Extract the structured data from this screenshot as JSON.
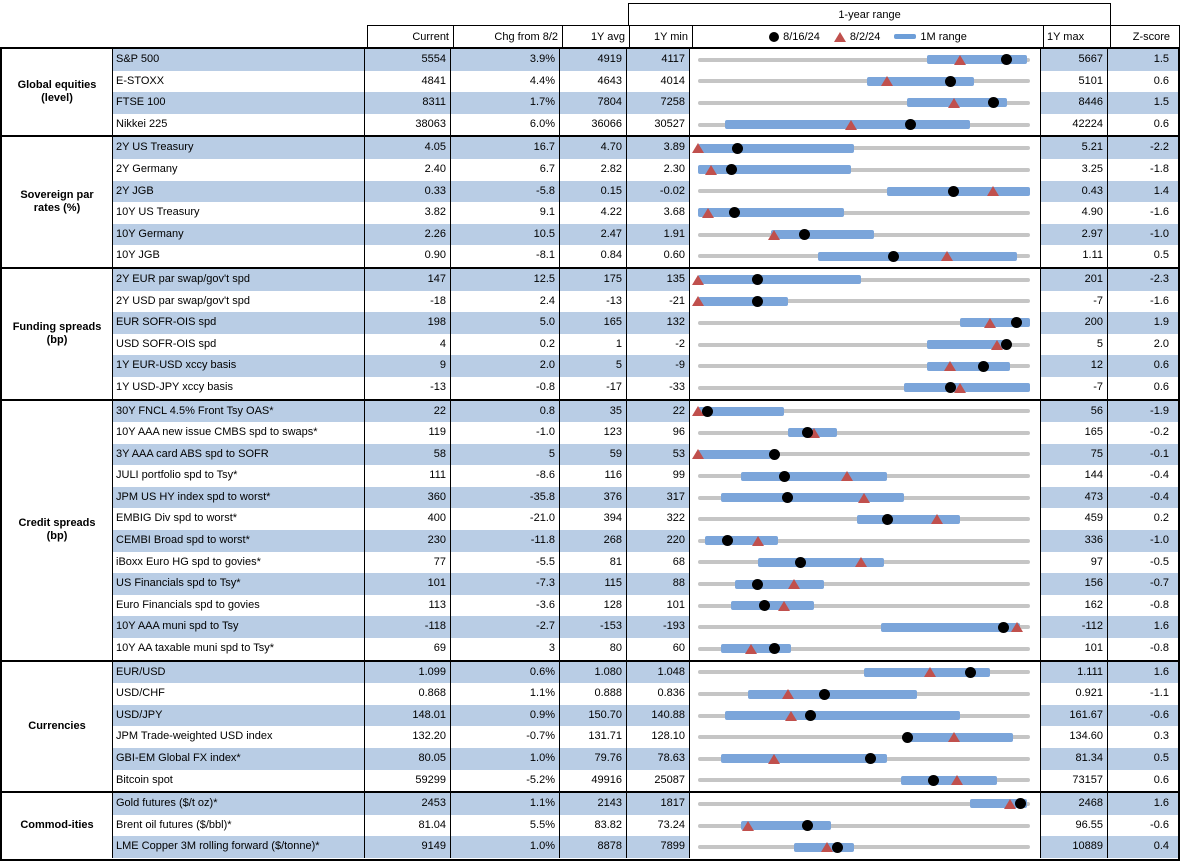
{
  "header": {
    "range_title": "1-year range",
    "columns": {
      "current": "Current",
      "chg": "Chg from 8/2",
      "avg": "1Y avg",
      "min": "1Y min",
      "max": "1Y max",
      "zscore": "Z-score"
    }
  },
  "legend": {
    "dot": "8/16/24",
    "triangle": "8/2/24",
    "bar": "1M range"
  },
  "colors": {
    "stripe": "#b9cde5",
    "bar_1m": "#7ba5da",
    "track": "#c5c5c5",
    "triangle": "#c0504d",
    "dot": "#000000"
  },
  "chart_data": {
    "type": "table",
    "title": "1-year range",
    "legend_position": "top",
    "notes": "Each row shows current value, change from 8/2, 1Y average, 1Y min/max, Z-score, and a bullet chart of the 1-year range. 'bar' = 1M range [start,end], 'tri' = 8/2/24 level, 'dot' = 8/16/24 level, all as fractions of the 1Y min-to-max track.",
    "groups": [
      {
        "label": "Global equities (level)",
        "rows": [
          {
            "name": "S&P 500",
            "current": "5554",
            "chg": "3.9%",
            "avg": "4919",
            "min": "4117",
            "max": "5667",
            "z": "1.5",
            "bar": [
              0.69,
              0.99
            ],
            "tri": 0.79,
            "dot": 0.93
          },
          {
            "name": "E-STOXX",
            "current": "4841",
            "chg": "4.4%",
            "avg": "4643",
            "min": "4014",
            "max": "5101",
            "z": "0.6",
            "bar": [
              0.51,
              0.83
            ],
            "tri": 0.57,
            "dot": 0.76
          },
          {
            "name": "FTSE 100",
            "current": "8311",
            "chg": "1.7%",
            "avg": "7804",
            "min": "7258",
            "max": "8446",
            "z": "1.5",
            "bar": [
              0.63,
              0.93
            ],
            "tri": 0.77,
            "dot": 0.89
          },
          {
            "name": "Nikkei 225",
            "current": "38063",
            "chg": "6.0%",
            "avg": "36066",
            "min": "30527",
            "max": "42224",
            "z": "0.6",
            "bar": [
              0.08,
              0.82
            ],
            "tri": 0.46,
            "dot": 0.64
          }
        ]
      },
      {
        "label": "Sovereign par rates (%)",
        "rows": [
          {
            "name": "2Y US Treasury",
            "current": "4.05",
            "chg": "16.7",
            "avg": "4.70",
            "min": "3.89",
            "max": "5.21",
            "z": "-2.2",
            "bar": [
              0.0,
              0.47
            ],
            "tri": 0.0,
            "dot": 0.12
          },
          {
            "name": "2Y Germany",
            "current": "2.40",
            "chg": "6.7",
            "avg": "2.82",
            "min": "2.30",
            "max": "3.25",
            "z": "-1.8",
            "bar": [
              0.0,
              0.46
            ],
            "tri": 0.04,
            "dot": 0.1
          },
          {
            "name": "2Y JGB",
            "current": "0.33",
            "chg": "-5.8",
            "avg": "0.15",
            "min": "-0.02",
            "max": "0.43",
            "z": "1.4",
            "bar": [
              0.57,
              1.0
            ],
            "tri": 0.89,
            "dot": 0.77
          },
          {
            "name": "10Y US Treasury",
            "current": "3.82",
            "chg": "9.1",
            "avg": "4.22",
            "min": "3.68",
            "max": "4.90",
            "z": "-1.6",
            "bar": [
              0.0,
              0.44
            ],
            "tri": 0.03,
            "dot": 0.11
          },
          {
            "name": "10Y Germany",
            "current": "2.26",
            "chg": "10.5",
            "avg": "2.47",
            "min": "1.91",
            "max": "2.97",
            "z": "-1.0",
            "bar": [
              0.22,
              0.53
            ],
            "tri": 0.23,
            "dot": 0.32
          },
          {
            "name": "10Y JGB",
            "current": "0.90",
            "chg": "-8.1",
            "avg": "0.84",
            "min": "0.60",
            "max": "1.11",
            "z": "0.5",
            "bar": [
              0.36,
              0.96
            ],
            "tri": 0.75,
            "dot": 0.59
          }
        ]
      },
      {
        "label": "Funding spreads (bp)",
        "rows": [
          {
            "name": "2Y EUR par swap/gov't spd",
            "current": "147",
            "chg": "12.5",
            "avg": "175",
            "min": "135",
            "max": "201",
            "z": "-2.3",
            "bar": [
              0.0,
              0.49
            ],
            "tri": 0.0,
            "dot": 0.18
          },
          {
            "name": "2Y USD par swap/gov't spd",
            "current": "-18",
            "chg": "2.4",
            "avg": "-13",
            "min": "-21",
            "max": "-7",
            "z": "-1.6",
            "bar": [
              0.0,
              0.27
            ],
            "tri": 0.0,
            "dot": 0.18
          },
          {
            "name": "EUR SOFR-OIS spd",
            "current": "198",
            "chg": "5.0",
            "avg": "165",
            "min": "132",
            "max": "200",
            "z": "1.9",
            "bar": [
              0.79,
              1.0
            ],
            "tri": 0.88,
            "dot": 0.96
          },
          {
            "name": "USD SOFR-OIS spd",
            "current": "4",
            "chg": "0.2",
            "avg": "1",
            "min": "-2",
            "max": "5",
            "z": "2.0",
            "bar": [
              0.69,
              0.94
            ],
            "tri": 0.9,
            "dot": 0.93
          },
          {
            "name": "1Y EUR-USD xccy basis",
            "current": "9",
            "chg": "2.0",
            "avg": "5",
            "min": "-9",
            "max": "12",
            "z": "0.6",
            "bar": [
              0.69,
              0.94
            ],
            "tri": 0.76,
            "dot": 0.86
          },
          {
            "name": "1Y USD-JPY xccy basis",
            "current": "-13",
            "chg": "-0.8",
            "avg": "-17",
            "min": "-33",
            "max": "-7",
            "z": "0.6",
            "bar": [
              0.62,
              1.0
            ],
            "tri": 0.79,
            "dot": 0.76
          }
        ]
      },
      {
        "label": "Credit spreads (bp)",
        "rows": [
          {
            "name": "30Y FNCL 4.5% Front Tsy OAS*",
            "current": "22",
            "chg": "0.8",
            "avg": "35",
            "min": "22",
            "max": "56",
            "z": "-1.9",
            "bar": [
              0.0,
              0.26
            ],
            "tri": 0.0,
            "dot": 0.03
          },
          {
            "name": "10Y AAA new issue CMBS spd to swaps*",
            "current": "119",
            "chg": "-1.0",
            "avg": "123",
            "min": "96",
            "max": "165",
            "z": "-0.2",
            "bar": [
              0.27,
              0.42
            ],
            "tri": 0.35,
            "dot": 0.33
          },
          {
            "name": "3Y AAA card ABS spd to SOFR",
            "current": "58",
            "chg": "5",
            "avg": "59",
            "min": "53",
            "max": "75",
            "z": "-0.1",
            "bar": [
              0.0,
              0.22
            ],
            "tri": 0.0,
            "dot": 0.23
          },
          {
            "name": "JULI portfolio spd to Tsy*",
            "current": "111",
            "chg": "-8.6",
            "avg": "116",
            "min": "99",
            "max": "144",
            "z": "-0.4",
            "bar": [
              0.13,
              0.57
            ],
            "tri": 0.45,
            "dot": 0.26
          },
          {
            "name": "JPM US HY index spd to worst*",
            "current": "360",
            "chg": "-35.8",
            "avg": "376",
            "min": "317",
            "max": "473",
            "z": "-0.4",
            "bar": [
              0.07,
              0.62
            ],
            "tri": 0.5,
            "dot": 0.27
          },
          {
            "name": "EMBIG Div spd to worst*",
            "current": "400",
            "chg": "-21.0",
            "avg": "394",
            "min": "322",
            "max": "459",
            "z": "0.2",
            "bar": [
              0.48,
              0.79
            ],
            "tri": 0.72,
            "dot": 0.57
          },
          {
            "name": "CEMBI Broad spd to worst*",
            "current": "230",
            "chg": "-11.8",
            "avg": "268",
            "min": "220",
            "max": "336",
            "z": "-1.0",
            "bar": [
              0.02,
              0.24
            ],
            "tri": 0.18,
            "dot": 0.09
          },
          {
            "name": "iBoxx Euro HG spd to govies*",
            "current": "77",
            "chg": "-5.5",
            "avg": "81",
            "min": "68",
            "max": "97",
            "z": "-0.5",
            "bar": [
              0.18,
              0.56
            ],
            "tri": 0.49,
            "dot": 0.31
          },
          {
            "name": "US Financials spd to Tsy*",
            "current": "101",
            "chg": "-7.3",
            "avg": "115",
            "min": "88",
            "max": "156",
            "z": "-0.7",
            "bar": [
              0.11,
              0.38
            ],
            "tri": 0.29,
            "dot": 0.18
          },
          {
            "name": "Euro Financials spd to govies",
            "current": "113",
            "chg": "-3.6",
            "avg": "128",
            "min": "101",
            "max": "162",
            "z": "-0.8",
            "bar": [
              0.1,
              0.35
            ],
            "tri": 0.26,
            "dot": 0.2
          },
          {
            "name": "10Y AAA muni spd to Tsy",
            "current": "-118",
            "chg": "-2.7",
            "avg": "-153",
            "min": "-193",
            "max": "-112",
            "z": "1.6",
            "bar": [
              0.55,
              0.97
            ],
            "tri": 0.96,
            "dot": 0.92
          },
          {
            "name": "10Y AA taxable muni spd to Tsy*",
            "current": "69",
            "chg": "3",
            "avg": "80",
            "min": "60",
            "max": "101",
            "z": "-0.8",
            "bar": [
              0.07,
              0.28
            ],
            "tri": 0.16,
            "dot": 0.23
          }
        ]
      },
      {
        "label": "Currencies",
        "rows": [
          {
            "name": "EUR/USD",
            "current": "1.099",
            "chg": "0.6%",
            "avg": "1.080",
            "min": "1.048",
            "max": "1.111",
            "z": "1.6",
            "bar": [
              0.5,
              0.88
            ],
            "tri": 0.7,
            "dot": 0.82
          },
          {
            "name": "USD/CHF",
            "current": "0.868",
            "chg": "1.1%",
            "avg": "0.888",
            "min": "0.836",
            "max": "0.921",
            "z": "-1.1",
            "bar": [
              0.15,
              0.66
            ],
            "tri": 0.27,
            "dot": 0.38
          },
          {
            "name": "USD/JPY",
            "current": "148.01",
            "chg": "0.9%",
            "avg": "150.70",
            "min": "140.88",
            "max": "161.67",
            "z": "-0.6",
            "bar": [
              0.08,
              0.79
            ],
            "tri": 0.28,
            "dot": 0.34
          },
          {
            "name": "JPM Trade-weighted USD index",
            "current": "132.20",
            "chg": "-0.7%",
            "avg": "131.71",
            "min": "128.10",
            "max": "134.60",
            "z": "0.3",
            "bar": [
              0.64,
              0.95
            ],
            "tri": 0.77,
            "dot": 0.63
          },
          {
            "name": "GBI-EM Global FX index*",
            "current": "80.05",
            "chg": "1.0%",
            "avg": "79.76",
            "min": "78.63",
            "max": "81.34",
            "z": "0.5",
            "bar": [
              0.07,
              0.57
            ],
            "tri": 0.23,
            "dot": 0.52
          },
          {
            "name": "Bitcoin spot",
            "current": "59299",
            "chg": "-5.2%",
            "avg": "49916",
            "min": "25087",
            "max": "73157",
            "z": "0.6",
            "bar": [
              0.61,
              0.9
            ],
            "tri": 0.78,
            "dot": 0.71
          }
        ]
      },
      {
        "label": "Commod-ities",
        "rows": [
          {
            "name": "Gold futures ($/t oz)*",
            "current": "2453",
            "chg": "1.1%",
            "avg": "2143",
            "min": "1817",
            "max": "2468",
            "z": "1.6",
            "bar": [
              0.82,
              0.99
            ],
            "tri": 0.94,
            "dot": 0.97
          },
          {
            "name": "Brent oil futures ($/bbl)*",
            "current": "81.04",
            "chg": "5.5%",
            "avg": "83.82",
            "min": "73.24",
            "max": "96.55",
            "z": "-0.6",
            "bar": [
              0.13,
              0.4
            ],
            "tri": 0.15,
            "dot": 0.33
          },
          {
            "name": "LME Copper 3M rolling forward ($/tonne)*",
            "current": "9149",
            "chg": "1.0%",
            "avg": "8878",
            "min": "7899",
            "max": "10889",
            "z": "0.4",
            "bar": [
              0.29,
              0.47
            ],
            "tri": 0.39,
            "dot": 0.42
          }
        ]
      }
    ]
  }
}
